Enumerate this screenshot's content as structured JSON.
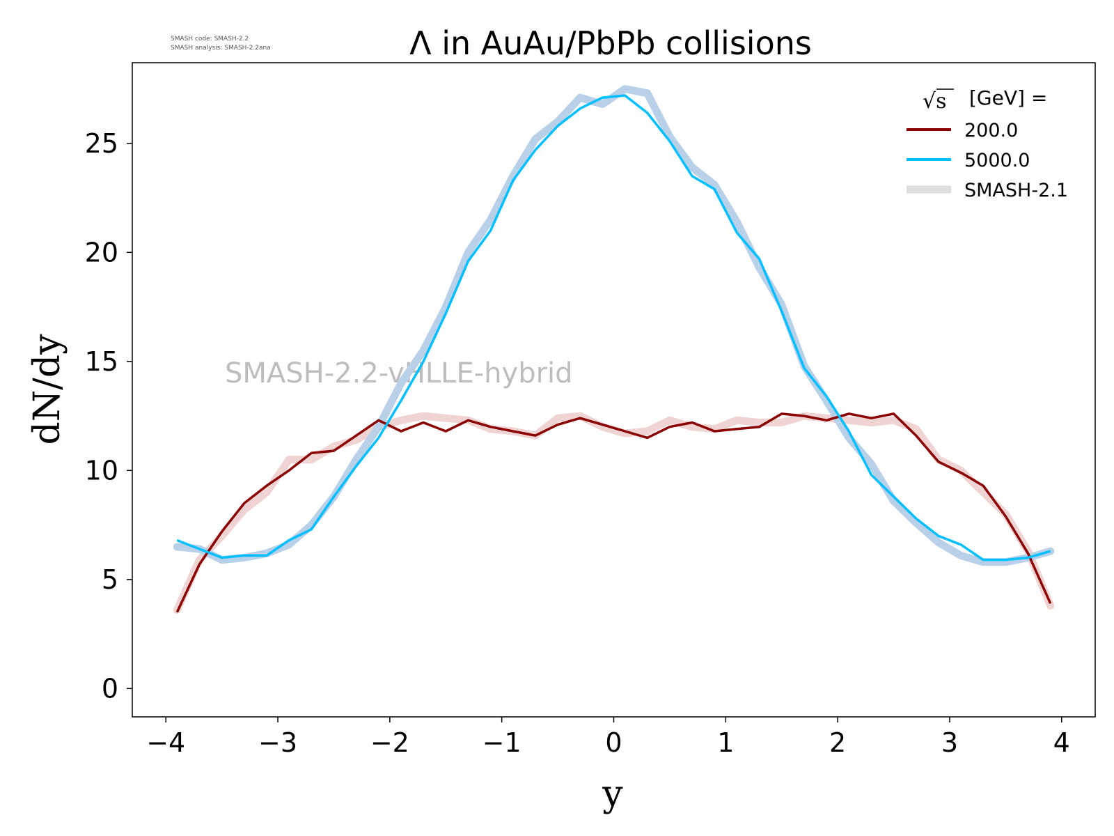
{
  "header": {
    "info_line1": "SMASH code:      SMASH-2.2",
    "info_line2": "SMASH analysis:  SMASH-2.2ana"
  },
  "watermark": "SMASH-2.2-vHLLE-hybrid",
  "legend": {
    "title": "[GeV] =",
    "title_symbol": "√s",
    "entries": [
      "200.0",
      "5000.0",
      "SMASH-2.1"
    ]
  },
  "colors": {
    "s200": "#8b0000",
    "s5000": "#00bfff",
    "s200_ref": "#f0d4d4",
    "s5000_ref": "#b8d0e8",
    "legend_ref": "#dedede",
    "watermark": "#bdbdbd"
  },
  "chart_data": {
    "type": "line",
    "title": "Λ in AuAu/PbPb collisions",
    "xlabel": "y",
    "ylabel": "dN/dy",
    "xlim": [
      -4.3,
      4.3
    ],
    "ylim": [
      -1.3,
      28.7
    ],
    "xticks": [
      -4,
      -3,
      -2,
      -1,
      0,
      1,
      2,
      3,
      4
    ],
    "xtick_labels": [
      "−4",
      "−3",
      "−2",
      "−1",
      "0",
      "1",
      "2",
      "3",
      "4"
    ],
    "yticks": [
      0,
      5,
      10,
      15,
      20,
      25
    ],
    "ytick_labels": [
      "0",
      "5",
      "10",
      "15",
      "20",
      "25"
    ],
    "grid": false,
    "legend_position": "top-right",
    "x": [
      -3.9,
      -3.7,
      -3.5,
      -3.3,
      -3.1,
      -2.9,
      -2.7,
      -2.5,
      -2.3,
      -2.1,
      -1.9,
      -1.7,
      -1.5,
      -1.3,
      -1.1,
      -0.9,
      -0.7,
      -0.5,
      -0.3,
      -0.1,
      0.1,
      0.3,
      0.5,
      0.7,
      0.9,
      1.1,
      1.3,
      1.5,
      1.7,
      1.9,
      2.1,
      2.3,
      2.5,
      2.7,
      2.9,
      3.1,
      3.3,
      3.5,
      3.7,
      3.9
    ],
    "series": [
      {
        "name": "200.0",
        "values": [
          3.5,
          5.7,
          7.2,
          8.5,
          9.3,
          10.0,
          10.8,
          10.9,
          11.6,
          12.3,
          11.8,
          12.2,
          11.8,
          12.3,
          12.0,
          11.8,
          11.6,
          12.1,
          12.4,
          12.1,
          11.8,
          11.5,
          12.0,
          12.2,
          11.8,
          11.9,
          12.0,
          12.6,
          12.5,
          12.3,
          12.6,
          12.4,
          12.6,
          11.6,
          10.4,
          9.9,
          9.3,
          7.9,
          6.2,
          3.9
        ]
      },
      {
        "name": "5000.0",
        "values": [
          6.8,
          6.4,
          6.0,
          6.1,
          6.1,
          6.8,
          7.3,
          8.8,
          10.2,
          11.5,
          13.2,
          15.0,
          17.2,
          19.6,
          21.0,
          23.3,
          24.7,
          25.8,
          26.6,
          27.1,
          27.2,
          26.4,
          25.1,
          23.5,
          22.9,
          20.9,
          19.7,
          17.3,
          14.7,
          13.4,
          11.8,
          9.8,
          8.8,
          7.8,
          7.0,
          6.6,
          5.9,
          5.9,
          6.0,
          6.3
        ]
      },
      {
        "name": "SMASH-2.1",
        "values_200": [
          3.6,
          5.9,
          7.0,
          8.2,
          9.0,
          10.5,
          10.5,
          11.1,
          11.4,
          12.0,
          12.3,
          12.5,
          12.4,
          12.3,
          11.9,
          11.8,
          11.6,
          12.4,
          12.5,
          12.0,
          11.7,
          11.8,
          12.3,
          12.0,
          11.9,
          12.3,
          12.2,
          12.2,
          12.5,
          12.4,
          12.3,
          12.2,
          12.3,
          11.9,
          10.5,
          10.0,
          9.0,
          8.0,
          6.3,
          3.8
        ],
        "values_5000": [
          6.5,
          6.4,
          5.9,
          6.0,
          6.2,
          6.6,
          7.5,
          8.8,
          10.5,
          12.0,
          14.0,
          15.5,
          17.5,
          20.0,
          21.5,
          23.5,
          25.2,
          26.0,
          27.1,
          26.8,
          27.5,
          27.3,
          25.3,
          23.9,
          23.1,
          21.4,
          19.3,
          17.6,
          14.8,
          13.2,
          11.5,
          10.3,
          8.6,
          7.6,
          6.7,
          6.1,
          5.8,
          5.8,
          6.0,
          6.3
        ]
      }
    ]
  }
}
